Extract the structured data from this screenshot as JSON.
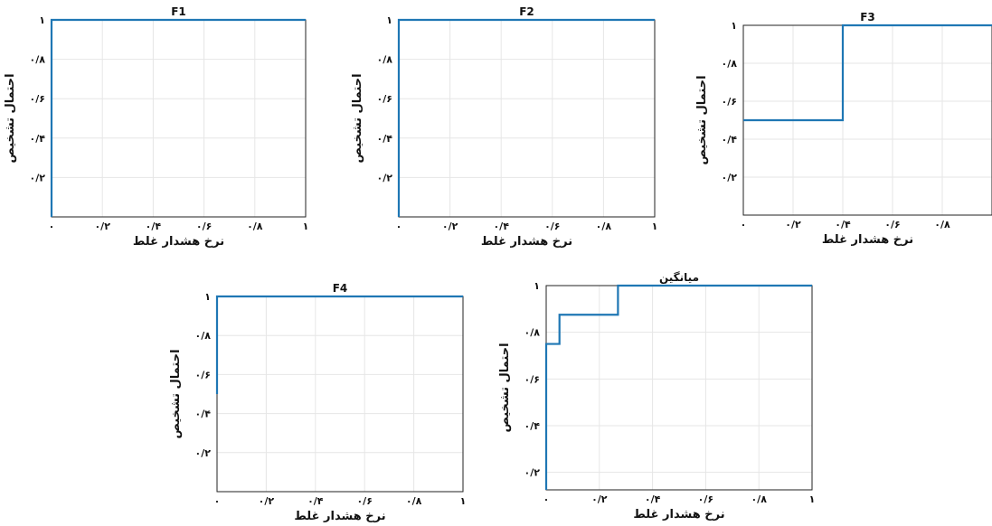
{
  "chart_data": [
    {
      "type": "line",
      "title": "F1",
      "xlabel": "نرخ هشدار غلط",
      "ylabel": "احتمال تشخیص",
      "xlim": [
        0,
        1
      ],
      "ylim": [
        0,
        1
      ],
      "grid": true,
      "xticks": [
        "۰",
        "۰/۲",
        "۰/۴",
        "۰/۶",
        "۰/۸",
        "۱"
      ],
      "yticks": [
        "۰/۲",
        "۰/۴",
        "۰/۶",
        "۰/۸",
        "۱"
      ],
      "series": [
        {
          "x": [
            0,
            0,
            1
          ],
          "y": [
            0,
            1,
            1
          ]
        }
      ]
    },
    {
      "type": "line",
      "title": "F2",
      "xlabel": "نرخ هشدار غلط",
      "ylabel": "احتمال تشخیص",
      "xlim": [
        0,
        1
      ],
      "ylim": [
        0,
        1
      ],
      "grid": true,
      "xticks": [
        "۰",
        "۰/۲",
        "۰/۴",
        "۰/۶",
        "۰/۸",
        "۱"
      ],
      "yticks": [
        "۰/۲",
        "۰/۴",
        "۰/۶",
        "۰/۸",
        "۱"
      ],
      "series": [
        {
          "x": [
            0,
            0,
            1
          ],
          "y": [
            0,
            1,
            1
          ]
        }
      ]
    },
    {
      "type": "line",
      "title": "F3",
      "xlabel": "نرخ هشدار غلط",
      "ylabel": "احتمال تشخیص",
      "xlim": [
        0,
        1
      ],
      "ylim": [
        0,
        1
      ],
      "grid": true,
      "xticks": [
        "۰",
        "۰/۲",
        "۰/۴",
        "۰/۶",
        "۰/۸"
      ],
      "yticks": [
        "۰/۲",
        "۰/۴",
        "۰/۶",
        "۰/۸",
        "۱"
      ],
      "series": [
        {
          "x": [
            0,
            0.4,
            0.4,
            1
          ],
          "y": [
            0.5,
            0.5,
            1,
            1
          ]
        }
      ]
    },
    {
      "type": "line",
      "title": "F4",
      "xlabel": "نرخ هشدار غلط",
      "ylabel": "احتمال تشخیص",
      "xlim": [
        0,
        1
      ],
      "ylim": [
        0,
        1
      ],
      "grid": true,
      "xticks": [
        "۰",
        "۰/۲",
        "۰/۴",
        "۰/۶",
        "۰/۸",
        "۱"
      ],
      "yticks": [
        "۰/۲",
        "۰/۴",
        "۰/۶",
        "۰/۸",
        "۱"
      ],
      "series": [
        {
          "x": [
            0,
            0,
            1
          ],
          "y": [
            0.5,
            1,
            1
          ]
        }
      ]
    },
    {
      "type": "line",
      "title": "میانگین",
      "xlabel": "نرخ هشدار غلط",
      "ylabel": "احتمال تشخیص",
      "xlim": [
        0,
        1
      ],
      "ylim": [
        0,
        1
      ],
      "grid": true,
      "xticks": [
        "۰",
        "۰/۲",
        "۰/۴",
        "۰/۶",
        "۰/۸",
        "۱"
      ],
      "yticks": [
        "۰/۲",
        "۰/۴",
        "۰/۶",
        "۰/۸",
        "۱"
      ],
      "series": [
        {
          "x": [
            0,
            0,
            0.05,
            0.05,
            0.27,
            0.27,
            1
          ],
          "y": [
            0.125,
            0.75,
            0.75,
            0.875,
            0.875,
            1,
            1
          ]
        }
      ]
    }
  ]
}
